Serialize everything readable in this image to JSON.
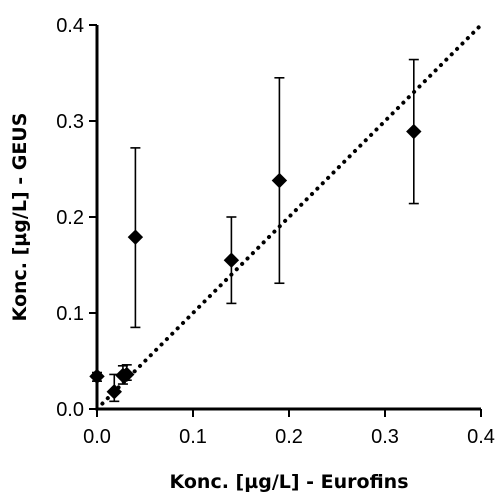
{
  "chart_data": {
    "type": "scatter",
    "xlabel": "Konc. [µg/L] - Eurofins",
    "ylabel": "Konc. [µg/L] - GEUS",
    "xlim": [
      0,
      0.4
    ],
    "ylim": [
      0,
      0.4
    ],
    "x_ticks": [
      "0.0",
      "0.1",
      "0.2",
      "0.3",
      "0.4"
    ],
    "y_ticks": [
      "0.0",
      "0.1",
      "0.2",
      "0.3",
      "0.4"
    ],
    "grid": false,
    "reference_line": {
      "style": "dotted",
      "from": [
        0,
        0
      ],
      "to": [
        0.4,
        0.4
      ]
    },
    "marker": "diamond",
    "color": "#000000",
    "points": [
      {
        "x": 0.0,
        "y": 0.034,
        "y_low": 0.029,
        "y_high": 0.038
      },
      {
        "x": 0.018,
        "y": 0.018,
        "y_low": 0.008,
        "y_high": 0.036
      },
      {
        "x": 0.027,
        "y": 0.035,
        "y_low": 0.026,
        "y_high": 0.045
      },
      {
        "x": 0.031,
        "y": 0.036,
        "y_low": 0.03,
        "y_high": 0.046
      },
      {
        "x": 0.04,
        "y": 0.179,
        "y_low": 0.085,
        "y_high": 0.272
      },
      {
        "x": 0.14,
        "y": 0.155,
        "y_low": 0.11,
        "y_high": 0.2
      },
      {
        "x": 0.19,
        "y": 0.238,
        "y_low": 0.131,
        "y_high": 0.345
      },
      {
        "x": 0.33,
        "y": 0.289,
        "y_low": 0.214,
        "y_high": 0.364
      }
    ]
  }
}
